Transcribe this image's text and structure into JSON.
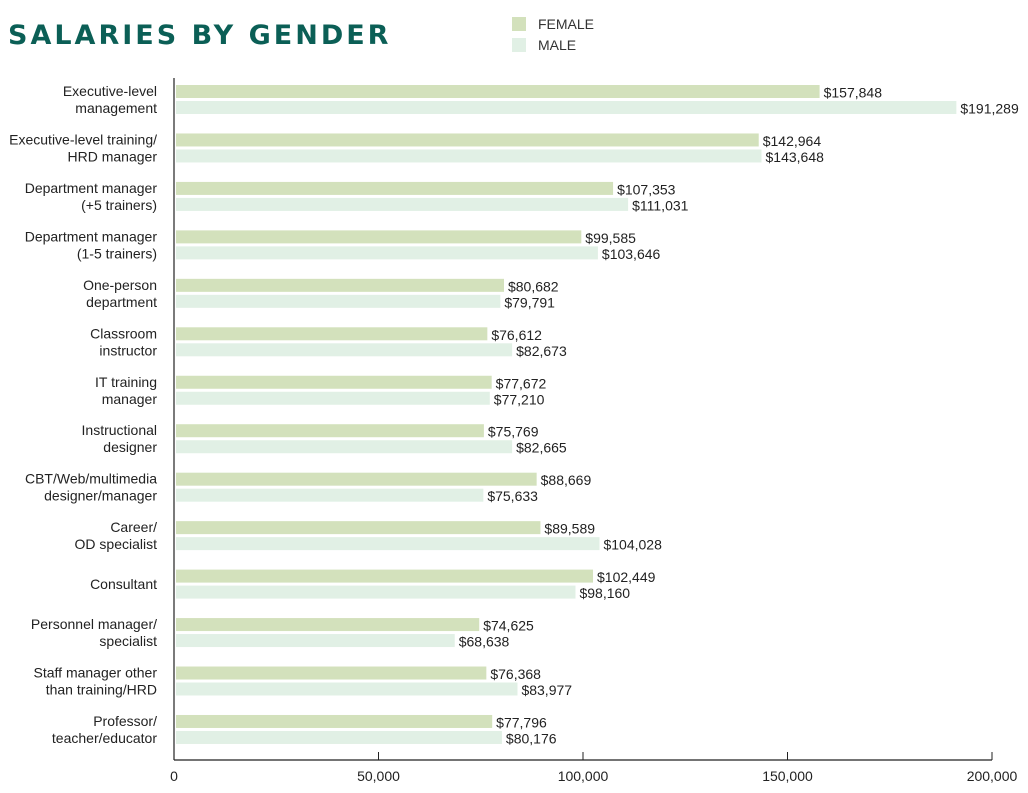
{
  "chart_data": {
    "type": "bar",
    "orientation": "horizontal",
    "title": "SALARIES BY GENDER",
    "categories": [
      [
        "Executive-level",
        "management"
      ],
      [
        "Executive-level training/",
        "HRD manager"
      ],
      [
        "Department manager",
        "(+5 trainers)"
      ],
      [
        "Department manager",
        "(1-5 trainers)"
      ],
      [
        "One-person",
        "department"
      ],
      [
        "Classroom",
        "instructor"
      ],
      [
        "IT training",
        "manager"
      ],
      [
        "Instructional",
        "designer"
      ],
      [
        "CBT/Web/multimedia",
        "designer/manager"
      ],
      [
        "Career/",
        "OD specialist"
      ],
      [
        "Consultant"
      ],
      [
        "Personnel manager/",
        "specialist"
      ],
      [
        "Staff manager other",
        "than training/HRD"
      ],
      [
        "Professor/",
        "teacher/educator"
      ]
    ],
    "series": [
      {
        "name": "FEMALE",
        "color": "#d3e1bc",
        "values": [
          157848,
          142964,
          107353,
          99585,
          80682,
          76612,
          77672,
          75769,
          88669,
          89589,
          102449,
          74625,
          76368,
          77796
        ],
        "labels": [
          "$157,848",
          "$142,964",
          "$107,353",
          "$99,585",
          "$80,682",
          "$76,612",
          "$77,672",
          "$75,769",
          "$88,669",
          "$89,589",
          "$102,449",
          "$74,625",
          "$76,368",
          "$77,796"
        ]
      },
      {
        "name": "MALE",
        "color": "#e1f0e5",
        "values": [
          191289,
          143648,
          111031,
          103646,
          79791,
          82673,
          77210,
          82665,
          75633,
          104028,
          98160,
          68638,
          83977,
          80176
        ],
        "labels": [
          "$191,289",
          "$143,648",
          "$111,031",
          "$103,646",
          "$79,791",
          "$82,673",
          "$77,210",
          "$82,665",
          "$75,633",
          "$104,028",
          "$98,160",
          "$68,638",
          "$83,977",
          "$80,176"
        ]
      }
    ],
    "xlim": [
      0,
      200000
    ],
    "xticks": [
      0,
      50000,
      100000,
      150000,
      200000
    ],
    "xtick_labels": [
      "0",
      "50,000",
      "100,000",
      "150,000",
      "200,000"
    ],
    "grid": false,
    "legend": "top",
    "title_color": "#0b5f56"
  }
}
